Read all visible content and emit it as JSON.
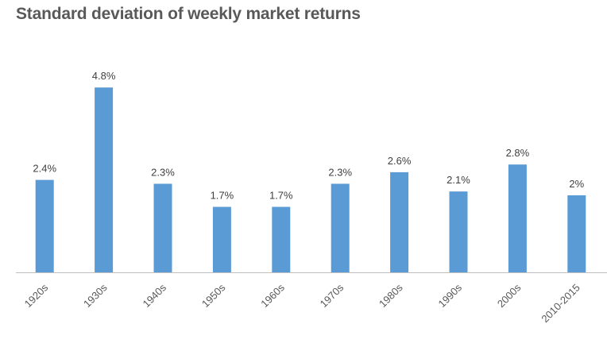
{
  "chart_data": {
    "type": "bar",
    "title": "Standard deviation of weekly market returns",
    "categories": [
      "1920s",
      "1930s",
      "1940s",
      "1950s",
      "1960s",
      "1970s",
      "1980s",
      "1990s",
      "2000s",
      "2010-2015"
    ],
    "values": [
      2.4,
      4.8,
      2.3,
      1.7,
      1.7,
      2.3,
      2.6,
      2.1,
      2.8,
      2.0
    ],
    "data_labels": [
      "2.4%",
      "4.8%",
      "2.3%",
      "1.7%",
      "1.7%",
      "2.3%",
      "2.6%",
      "2.1%",
      "2.8%",
      "2%"
    ],
    "xlabel": "",
    "ylabel": "",
    "ylim": [
      0,
      5
    ],
    "grid": false,
    "legend": "none",
    "bar_color": "#5b9bd5",
    "axis_color": "#bfbfbf"
  }
}
